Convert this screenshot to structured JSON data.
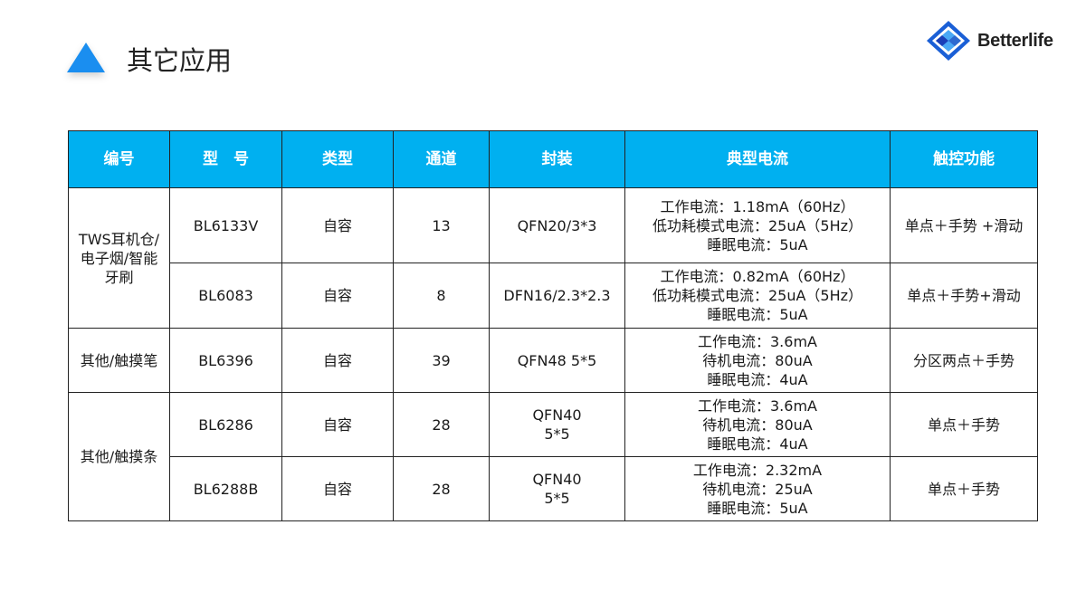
{
  "header": {
    "title": "其它应用",
    "logo_text": "Betterlife",
    "accent": "#1a8ef0",
    "table_header_color": "#00b0f0"
  },
  "table": {
    "columns": [
      "编号",
      "型　号",
      "类型",
      "通道",
      "封装",
      "典型电流",
      "触控功能"
    ],
    "groups": [
      {
        "category": "TWS耳机仓/\n电子烟/智能\n牙刷",
        "rows": [
          {
            "model": "BL6133V",
            "type": "自容",
            "channels": "13",
            "package": "QFN20/3*3",
            "current": "工作电流：1.18mA（60Hz）\n低功耗模式电流：25uA（5Hz）\n睡眠电流：5uA",
            "function": "单点＋手势 +滑动"
          },
          {
            "model": "BL6083",
            "type": "自容",
            "channels": "8",
            "package": "DFN16/2.3*2.3",
            "current": "工作电流：0.82mA（60Hz）\n低功耗模式电流：25uA（5Hz）\n睡眠电流：5uA",
            "function": "单点＋手势+滑动"
          }
        ]
      },
      {
        "category": "其他/触摸笔",
        "rows": [
          {
            "model": "BL6396",
            "type": "自容",
            "channels": "39",
            "package": "QFN48 5*5",
            "current": "工作电流：3.6mA\n待机电流：80uA\n睡眠电流：4uA",
            "function": "分区两点＋手势"
          }
        ]
      },
      {
        "category": "其他/触摸条",
        "rows": [
          {
            "model": "BL6286",
            "type": "自容",
            "channels": "28",
            "package": "QFN40\n5*5",
            "current": "工作电流：3.6mA\n待机电流：80uA\n睡眠电流：4uA",
            "function": "单点＋手势"
          },
          {
            "model": "BL6288B",
            "type": "自容",
            "channels": "28",
            "package": "QFN40\n5*5",
            "current": "工作电流：2.32mA\n待机电流：25uA\n睡眠电流：5uA",
            "function": "单点＋手势"
          }
        ]
      }
    ]
  }
}
